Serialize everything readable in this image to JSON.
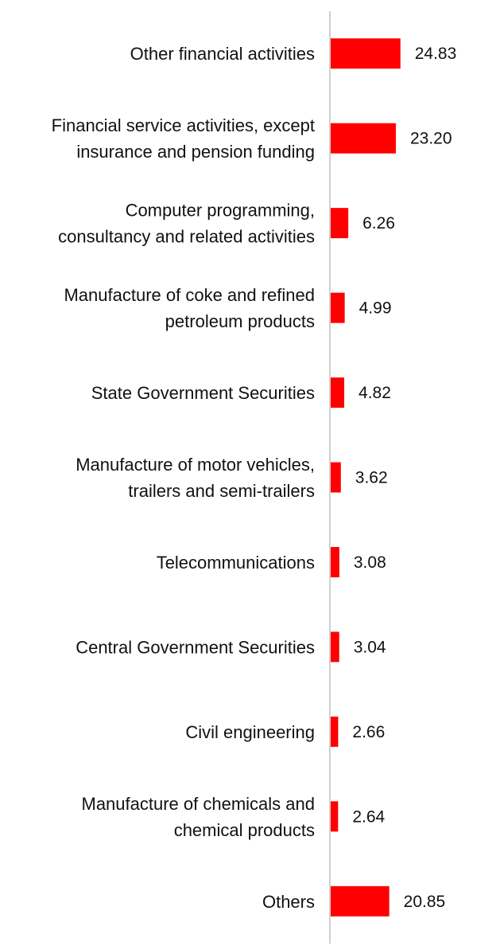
{
  "chart_data": {
    "type": "bar",
    "orientation": "horizontal",
    "title": "",
    "xlabel": "",
    "ylabel": "",
    "categories": [
      [
        "Other financial activities"
      ],
      [
        "Financial service activities, except",
        "insurance and pension funding"
      ],
      [
        "Computer programming,",
        "consultancy and related activities"
      ],
      [
        "Manufacture of coke and refined",
        "petroleum products"
      ],
      [
        "State Government Securities"
      ],
      [
        "Manufacture of motor vehicles,",
        "trailers and semi-trailers"
      ],
      [
        "Telecommunications"
      ],
      [
        "Central Government Securities"
      ],
      [
        "Civil engineering"
      ],
      [
        "Manufacture of chemicals and",
        "chemical products"
      ],
      [
        "Others"
      ]
    ],
    "values": [
      24.83,
      23.2,
      6.26,
      4.99,
      4.82,
      3.62,
      3.08,
      3.04,
      2.66,
      2.64,
      20.85
    ],
    "value_labels": [
      "24.83",
      "23.20",
      "6.26",
      "4.99",
      "4.82",
      "3.62",
      "3.08",
      "3.04",
      "2.66",
      "2.64",
      "20.85"
    ],
    "xlim": [
      0,
      60
    ],
    "grid": false,
    "legend": "none",
    "bar_color": "#ff0000",
    "axis_color": "#d0d0d0"
  }
}
